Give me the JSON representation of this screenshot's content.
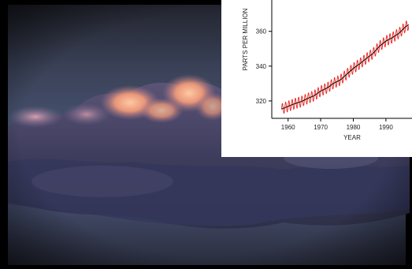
{
  "background": {
    "description_colors": {
      "sky_top": "#2e3140",
      "sky_mid": "#5a6a8f",
      "cloud_dark": "#3a3a5a",
      "cloud_lit": "#f0a07a",
      "cloud_pink": "#c98a9a"
    }
  },
  "chart_data": {
    "type": "line",
    "title": "",
    "xlabel": "YEAR",
    "ylabel": "PARTS PER MILLION",
    "xlim": [
      1955,
      1998
    ],
    "ylim": [
      310,
      378
    ],
    "xticks": [
      1960,
      1970,
      1980,
      1990
    ],
    "yticks": [
      320,
      340,
      360
    ],
    "grid": false,
    "line_color": "#000000",
    "seasonal_color": "#e8231f",
    "annual_mean": {
      "x": [
        1958,
        1960,
        1962,
        1964,
        1966,
        1968,
        1970,
        1972,
        1974,
        1976,
        1978,
        1980,
        1982,
        1984,
        1986,
        1988,
        1990,
        1992,
        1994,
        1996,
        1997
      ],
      "y": [
        315.3,
        316.9,
        318.4,
        319.6,
        321.4,
        323.0,
        325.7,
        327.5,
        330.2,
        332.0,
        335.4,
        338.7,
        341.4,
        344.4,
        347.2,
        351.4,
        354.4,
        356.4,
        358.9,
        362.6,
        363.8
      ]
    },
    "seasonal_amplitude_ppm": 3.0
  }
}
